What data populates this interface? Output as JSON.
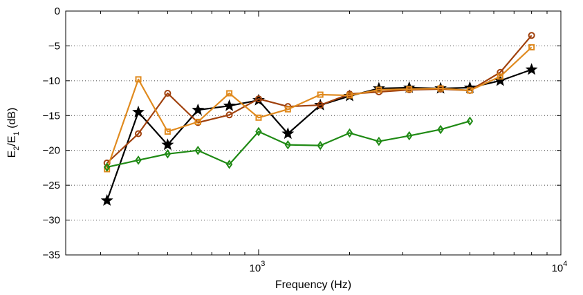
{
  "chart_data": {
    "type": "line",
    "title": "",
    "xlabel": "Frequency (Hz)",
    "ylabel": {
      "main_1": "E",
      "sub_1": "2",
      "main_2": "/E",
      "sub_2": "1",
      "main_3": " (dB)"
    },
    "x_scale": "log",
    "xlim": [
      230,
      10000
    ],
    "ylim": [
      -35,
      0
    ],
    "x_ticks": [
      {
        "value": 1000,
        "base": "10",
        "exp": "3"
      },
      {
        "value": 10000,
        "base": "10",
        "exp": "4"
      }
    ],
    "y_ticks": [
      0,
      -5,
      -10,
      -15,
      -20,
      -25,
      -30,
      -35
    ],
    "y_tick_labels": [
      "0",
      "−5",
      "−10",
      "−15",
      "−20",
      "−25",
      "−30",
      "−35"
    ],
    "grid": "dotted horizontal",
    "series": [
      {
        "color": "#000000",
        "marker": "star",
        "x": [
          315,
          400,
          500,
          630,
          800,
          1000,
          1250,
          1600,
          2000,
          2500,
          3150,
          4000,
          5000,
          6300,
          8000
        ],
        "y": [
          -27.2,
          -14.5,
          -19.2,
          -14.2,
          -13.6,
          -12.8,
          -17.6,
          -13.5,
          -12.2,
          -11.1,
          -11.0,
          -11.1,
          -11.0,
          -10.0,
          -8.4
        ]
      },
      {
        "color": "#a0410d",
        "marker": "circle",
        "x": [
          315,
          400,
          500,
          630,
          800,
          1000,
          1250,
          1600,
          2000,
          2500,
          3150,
          4000,
          5000,
          6300,
          8000
        ],
        "y": [
          -21.8,
          -17.6,
          -11.8,
          -16.0,
          -14.9,
          -12.6,
          -13.7,
          -13.5,
          -11.9,
          -11.6,
          -11.3,
          -11.2,
          -11.4,
          -8.8,
          -3.5
        ]
      },
      {
        "color": "#e08a1e",
        "marker": "square",
        "x": [
          315,
          400,
          500,
          630,
          800,
          1000,
          1250,
          1600,
          2000,
          2500,
          3150,
          4000,
          5000,
          6300,
          8000
        ],
        "y": [
          -22.7,
          -9.8,
          -17.3,
          -15.9,
          -11.8,
          -15.3,
          -14.1,
          -12.0,
          -12.1,
          -11.3,
          -11.2,
          -11.1,
          -11.4,
          -9.4,
          -5.2
        ]
      },
      {
        "color": "#1f8a14",
        "marker": "diamond",
        "x": [
          315,
          400,
          500,
          630,
          800,
          1000,
          1250,
          1600,
          2000,
          2500,
          3150,
          4000,
          5000
        ],
        "y": [
          -22.4,
          -21.4,
          -20.5,
          -20.0,
          -22.0,
          -17.3,
          -19.2,
          -19.3,
          -17.5,
          -18.7,
          -17.9,
          -17.0,
          -15.8
        ]
      }
    ]
  }
}
